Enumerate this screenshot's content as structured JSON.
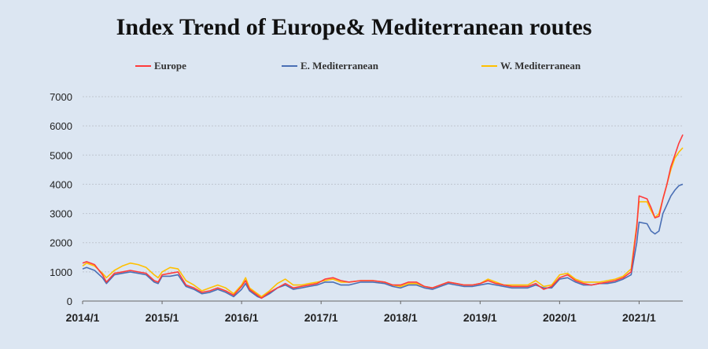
{
  "chart_data": {
    "type": "line",
    "title": "Index Trend of Europe& Mediterranean routes",
    "xlabel": "",
    "ylabel": "",
    "ylim": [
      0,
      7000
    ],
    "yticks": [
      0,
      1000,
      2000,
      3000,
      4000,
      5000,
      6000,
      7000
    ],
    "xticks": [
      "2014/1",
      "2015/1",
      "2016/1",
      "2017/1",
      "2018/1",
      "2019/1",
      "2020/1",
      "2021/1"
    ],
    "grid": "horizontal",
    "legend_position": "top",
    "series": [
      {
        "name": "Europe",
        "color": "#ff3b3b",
        "points": [
          [
            2014.0,
            1300
          ],
          [
            2014.05,
            1350
          ],
          [
            2014.15,
            1250
          ],
          [
            2014.25,
            900
          ],
          [
            2014.3,
            650
          ],
          [
            2014.4,
            950
          ],
          [
            2014.5,
            1000
          ],
          [
            2014.6,
            1050
          ],
          [
            2014.7,
            1000
          ],
          [
            2014.8,
            950
          ],
          [
            2014.9,
            700
          ],
          [
            2014.95,
            650
          ],
          [
            2015.0,
            900
          ],
          [
            2015.1,
            950
          ],
          [
            2015.2,
            1000
          ],
          [
            2015.3,
            550
          ],
          [
            2015.4,
            450
          ],
          [
            2015.5,
            300
          ],
          [
            2015.6,
            350
          ],
          [
            2015.7,
            450
          ],
          [
            2015.8,
            350
          ],
          [
            2015.9,
            200
          ],
          [
            2016.0,
            500
          ],
          [
            2016.05,
            700
          ],
          [
            2016.1,
            400
          ],
          [
            2016.2,
            200
          ],
          [
            2016.25,
            100
          ],
          [
            2016.35,
            300
          ],
          [
            2016.45,
            450
          ],
          [
            2016.55,
            600
          ],
          [
            2016.65,
            450
          ],
          [
            2016.75,
            500
          ],
          [
            2016.85,
            550
          ],
          [
            2016.95,
            600
          ],
          [
            2017.05,
            750
          ],
          [
            2017.15,
            800
          ],
          [
            2017.25,
            700
          ],
          [
            2017.35,
            650
          ],
          [
            2017.5,
            700
          ],
          [
            2017.65,
            700
          ],
          [
            2017.8,
            650
          ],
          [
            2017.9,
            550
          ],
          [
            2018.0,
            550
          ],
          [
            2018.1,
            650
          ],
          [
            2018.2,
            650
          ],
          [
            2018.3,
            500
          ],
          [
            2018.4,
            450
          ],
          [
            2018.5,
            550
          ],
          [
            2018.6,
            650
          ],
          [
            2018.7,
            600
          ],
          [
            2018.8,
            550
          ],
          [
            2018.9,
            550
          ],
          [
            2019.0,
            600
          ],
          [
            2019.1,
            700
          ],
          [
            2019.2,
            600
          ],
          [
            2019.3,
            550
          ],
          [
            2019.4,
            500
          ],
          [
            2019.5,
            500
          ],
          [
            2019.6,
            500
          ],
          [
            2019.7,
            600
          ],
          [
            2019.8,
            400
          ],
          [
            2019.9,
            500
          ],
          [
            2020.0,
            800
          ],
          [
            2020.1,
            900
          ],
          [
            2020.2,
            700
          ],
          [
            2020.3,
            600
          ],
          [
            2020.4,
            550
          ],
          [
            2020.5,
            600
          ],
          [
            2020.6,
            650
          ],
          [
            2020.7,
            700
          ],
          [
            2020.8,
            800
          ],
          [
            2020.9,
            1000
          ],
          [
            2020.97,
            2500
          ],
          [
            2021.0,
            3600
          ],
          [
            2021.1,
            3500
          ],
          [
            2021.15,
            3200
          ],
          [
            2021.2,
            2850
          ],
          [
            2021.25,
            2900
          ],
          [
            2021.3,
            3500
          ],
          [
            2021.35,
            4000
          ],
          [
            2021.4,
            4600
          ],
          [
            2021.45,
            5000
          ],
          [
            2021.5,
            5400
          ],
          [
            2021.55,
            5700
          ]
        ]
      },
      {
        "name": "E. Mediterranean",
        "color": "#4a6fb5",
        "points": [
          [
            2014.0,
            1100
          ],
          [
            2014.05,
            1150
          ],
          [
            2014.15,
            1050
          ],
          [
            2014.25,
            800
          ],
          [
            2014.3,
            600
          ],
          [
            2014.4,
            900
          ],
          [
            2014.5,
            950
          ],
          [
            2014.6,
            1000
          ],
          [
            2014.7,
            950
          ],
          [
            2014.8,
            900
          ],
          [
            2014.9,
            650
          ],
          [
            2014.95,
            600
          ],
          [
            2015.0,
            850
          ],
          [
            2015.1,
            850
          ],
          [
            2015.2,
            900
          ],
          [
            2015.3,
            500
          ],
          [
            2015.4,
            400
          ],
          [
            2015.5,
            250
          ],
          [
            2015.6,
            300
          ],
          [
            2015.7,
            400
          ],
          [
            2015.8,
            300
          ],
          [
            2015.9,
            150
          ],
          [
            2016.0,
            400
          ],
          [
            2016.05,
            600
          ],
          [
            2016.1,
            350
          ],
          [
            2016.2,
            150
          ],
          [
            2016.25,
            100
          ],
          [
            2016.35,
            250
          ],
          [
            2016.45,
            450
          ],
          [
            2016.55,
            550
          ],
          [
            2016.65,
            400
          ],
          [
            2016.75,
            450
          ],
          [
            2016.85,
            500
          ],
          [
            2016.95,
            550
          ],
          [
            2017.05,
            650
          ],
          [
            2017.15,
            650
          ],
          [
            2017.25,
            550
          ],
          [
            2017.35,
            550
          ],
          [
            2017.5,
            650
          ],
          [
            2017.65,
            650
          ],
          [
            2017.8,
            600
          ],
          [
            2017.9,
            500
          ],
          [
            2018.0,
            450
          ],
          [
            2018.1,
            550
          ],
          [
            2018.2,
            550
          ],
          [
            2018.3,
            450
          ],
          [
            2018.4,
            400
          ],
          [
            2018.5,
            500
          ],
          [
            2018.6,
            600
          ],
          [
            2018.7,
            550
          ],
          [
            2018.8,
            500
          ],
          [
            2018.9,
            500
          ],
          [
            2019.0,
            550
          ],
          [
            2019.1,
            600
          ],
          [
            2019.2,
            550
          ],
          [
            2019.3,
            500
          ],
          [
            2019.4,
            450
          ],
          [
            2019.5,
            450
          ],
          [
            2019.6,
            450
          ],
          [
            2019.7,
            550
          ],
          [
            2019.8,
            450
          ],
          [
            2019.9,
            450
          ],
          [
            2020.0,
            750
          ],
          [
            2020.1,
            800
          ],
          [
            2020.2,
            650
          ],
          [
            2020.3,
            550
          ],
          [
            2020.4,
            550
          ],
          [
            2020.5,
            600
          ],
          [
            2020.6,
            600
          ],
          [
            2020.7,
            650
          ],
          [
            2020.8,
            750
          ],
          [
            2020.9,
            900
          ],
          [
            2020.97,
            2000
          ],
          [
            2021.0,
            2700
          ],
          [
            2021.1,
            2650
          ],
          [
            2021.15,
            2400
          ],
          [
            2021.2,
            2300
          ],
          [
            2021.25,
            2400
          ],
          [
            2021.3,
            3000
          ],
          [
            2021.35,
            3300
          ],
          [
            2021.4,
            3600
          ],
          [
            2021.45,
            3800
          ],
          [
            2021.5,
            3950
          ],
          [
            2021.55,
            4000
          ]
        ]
      },
      {
        "name": "W. Mediterranean",
        "color": "#ffc000",
        "points": [
          [
            2014.0,
            1200
          ],
          [
            2014.05,
            1300
          ],
          [
            2014.15,
            1200
          ],
          [
            2014.25,
            950
          ],
          [
            2014.3,
            800
          ],
          [
            2014.4,
            1050
          ],
          [
            2014.5,
            1200
          ],
          [
            2014.6,
            1300
          ],
          [
            2014.7,
            1250
          ],
          [
            2014.8,
            1150
          ],
          [
            2014.9,
            900
          ],
          [
            2014.95,
            800
          ],
          [
            2015.0,
            1000
          ],
          [
            2015.1,
            1150
          ],
          [
            2015.2,
            1100
          ],
          [
            2015.3,
            700
          ],
          [
            2015.4,
            550
          ],
          [
            2015.5,
            350
          ],
          [
            2015.6,
            450
          ],
          [
            2015.7,
            550
          ],
          [
            2015.8,
            450
          ],
          [
            2015.9,
            250
          ],
          [
            2016.0,
            550
          ],
          [
            2016.05,
            800
          ],
          [
            2016.1,
            450
          ],
          [
            2016.2,
            250
          ],
          [
            2016.25,
            150
          ],
          [
            2016.35,
            350
          ],
          [
            2016.45,
            600
          ],
          [
            2016.55,
            750
          ],
          [
            2016.65,
            550
          ],
          [
            2016.75,
            550
          ],
          [
            2016.85,
            600
          ],
          [
            2016.95,
            650
          ],
          [
            2017.05,
            700
          ],
          [
            2017.15,
            750
          ],
          [
            2017.25,
            650
          ],
          [
            2017.35,
            650
          ],
          [
            2017.5,
            700
          ],
          [
            2017.65,
            700
          ],
          [
            2017.8,
            650
          ],
          [
            2017.9,
            550
          ],
          [
            2018.0,
            500
          ],
          [
            2018.1,
            600
          ],
          [
            2018.2,
            600
          ],
          [
            2018.3,
            500
          ],
          [
            2018.4,
            450
          ],
          [
            2018.5,
            550
          ],
          [
            2018.6,
            650
          ],
          [
            2018.7,
            600
          ],
          [
            2018.8,
            550
          ],
          [
            2018.9,
            550
          ],
          [
            2019.0,
            600
          ],
          [
            2019.1,
            750
          ],
          [
            2019.2,
            650
          ],
          [
            2019.3,
            550
          ],
          [
            2019.4,
            550
          ],
          [
            2019.5,
            550
          ],
          [
            2019.6,
            550
          ],
          [
            2019.7,
            700
          ],
          [
            2019.8,
            500
          ],
          [
            2019.9,
            550
          ],
          [
            2020.0,
            900
          ],
          [
            2020.1,
            950
          ],
          [
            2020.2,
            750
          ],
          [
            2020.3,
            650
          ],
          [
            2020.4,
            650
          ],
          [
            2020.5,
            650
          ],
          [
            2020.6,
            700
          ],
          [
            2020.7,
            750
          ],
          [
            2020.8,
            850
          ],
          [
            2020.9,
            1100
          ],
          [
            2020.97,
            2600
          ],
          [
            2021.0,
            3400
          ],
          [
            2021.1,
            3400
          ],
          [
            2021.15,
            3100
          ],
          [
            2021.2,
            2850
          ],
          [
            2021.25,
            3000
          ],
          [
            2021.3,
            3500
          ],
          [
            2021.35,
            4000
          ],
          [
            2021.4,
            4500
          ],
          [
            2021.45,
            4900
          ],
          [
            2021.5,
            5100
          ],
          [
            2021.55,
            5250
          ]
        ]
      }
    ]
  }
}
